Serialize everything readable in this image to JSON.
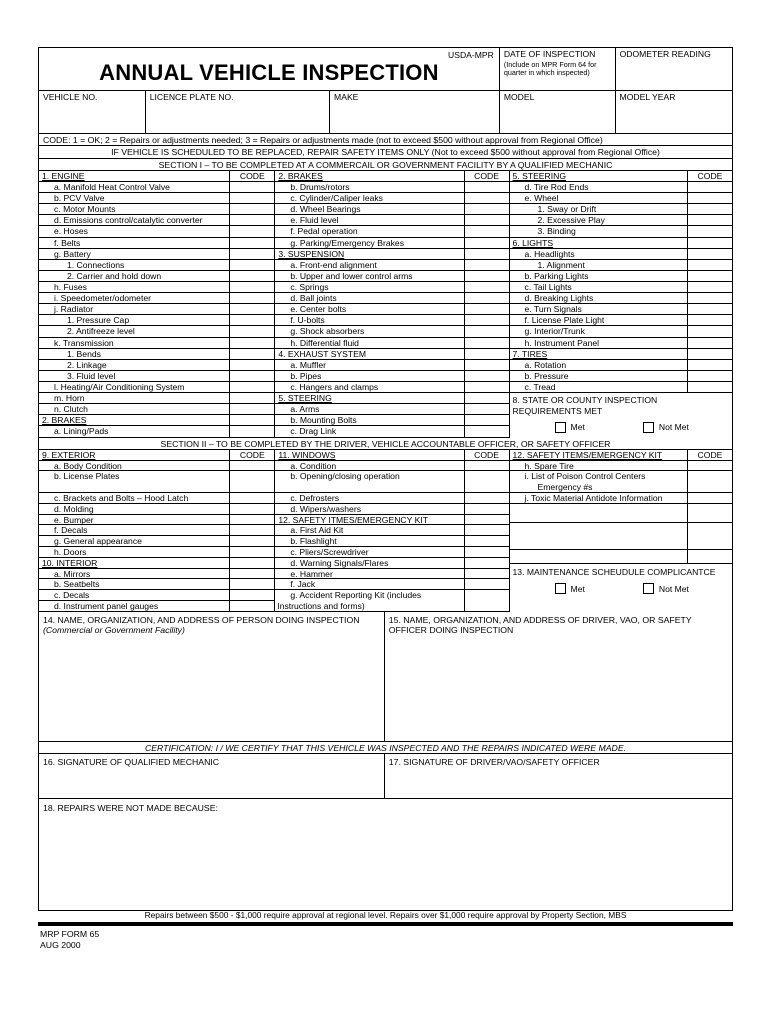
{
  "code_label": "CODE",
  "header": {
    "title": "ANNUAL VEHICLE INSPECTION",
    "form_code": "USDA-MPR",
    "date_label": "DATE OF INSPECTION",
    "date_note": "(Include on MPR Form 64 for quarter in which inspected)",
    "odometer_label": "ODOMETER READING",
    "fields": [
      "VEHICLE NO.",
      "LICENCE PLATE NO.",
      "MAKE",
      "MODEL",
      "MODEL YEAR"
    ]
  },
  "code_line": "CODE: 1 = OK; 2 = Repairs or adjustments needed; 3 = Repairs or adjustments made (not to exceed $500 without approval from Regional Office)",
  "replace_line": "IF VEHICLE IS SCHEDULED TO BE REPLACED, REPAIR SAFETY ITEMS ONLY (Not to exceed $500 without approval from Regional Office)",
  "section1": {
    "title": "SECTION I – TO BE COMPLETED AT A COMMERCAIL OR GOVERNMENT FACILITY BY A QUALIFIED MECHANIC",
    "col1": [
      {
        "t": "1.  ENGINE",
        "i": 0,
        "u": true,
        "hdr": true
      },
      {
        "t": "a.  Manifold Heat Control Valve",
        "i": 1
      },
      {
        "t": "b.  PCV Valve",
        "i": 1
      },
      {
        "t": "c.  Motor Mounts",
        "i": 1
      },
      {
        "t": "d.  Emissions control/catalytic converter",
        "i": 1
      },
      {
        "t": "e.  Hoses",
        "i": 1
      },
      {
        "t": "f.  Belts",
        "i": 1
      },
      {
        "t": "g.  Battery",
        "i": 1
      },
      {
        "t": "1.  Connections",
        "i": 2
      },
      {
        "t": "2.  Carrier and hold down",
        "i": 2
      },
      {
        "t": "h.  Fuses",
        "i": 1
      },
      {
        "t": "i.  Speedometer/odometer",
        "i": 1
      },
      {
        "t": "j.  Radiator",
        "i": 1
      },
      {
        "t": "1.  Pressure Cap",
        "i": 2
      },
      {
        "t": "2.  Antifreeze level",
        "i": 2
      },
      {
        "t": "k.  Transmission",
        "i": 1
      },
      {
        "t": "1.  Bends",
        "i": 2
      },
      {
        "t": "2.  Linkage",
        "i": 2
      },
      {
        "t": "3.  Fluid level",
        "i": 2
      },
      {
        "t": "l.  Heating/Air Conditioning System",
        "i": 1
      },
      {
        "t": "m. Horn",
        "i": 1
      },
      {
        "t": "n.  Clutch",
        "i": 1
      },
      {
        "t": "2.  BRAKES",
        "i": 0,
        "u": true
      },
      {
        "t": "a.  Lining/Pads",
        "i": 1
      }
    ],
    "col2": [
      {
        "t": "2.  BRAKES",
        "i": 0,
        "u": true,
        "hdr": true
      },
      {
        "t": "b.  Drums/rotors",
        "i": 1
      },
      {
        "t": "c.  Cylinder/Caliper leaks",
        "i": 1
      },
      {
        "t": "d.  Wheel Bearings",
        "i": 1
      },
      {
        "t": "e.  Fluid level",
        "i": 1
      },
      {
        "t": "f.  Pedal operation",
        "i": 1
      },
      {
        "t": "g.  Parking/Emergency Brakes",
        "i": 1
      },
      {
        "t": "3.  SUSPENSION",
        "i": 0,
        "u": true
      },
      {
        "t": "a.  Front-end alignment",
        "i": 1
      },
      {
        "t": "b.  Upper and lower control arms",
        "i": 1
      },
      {
        "t": "c.  Springs",
        "i": 1
      },
      {
        "t": "d.  Ball joints",
        "i": 1
      },
      {
        "t": "e.  Center bolts",
        "i": 1
      },
      {
        "t": "f.  U-bolts",
        "i": 1
      },
      {
        "t": "g.  Shock absorbers",
        "i": 1
      },
      {
        "t": "h.  Differential fluid",
        "i": 1
      },
      {
        "t": "4.  EXHAUST SYSTEM",
        "i": 0
      },
      {
        "t": "a.  Muffler",
        "i": 1
      },
      {
        "t": "b.  Pipes",
        "i": 1
      },
      {
        "t": "c.  Hangers and clamps",
        "i": 1
      },
      {
        "t": "5.  STEERING",
        "i": 0,
        "u": true
      },
      {
        "t": "a.  Arms",
        "i": 1
      },
      {
        "t": "b.  Mounting Bolts",
        "i": 1
      },
      {
        "t": "c.  Drag Link",
        "i": 1
      }
    ],
    "col3": [
      {
        "t": "5.  STEERING",
        "i": 0,
        "u": true,
        "hdr": true
      },
      {
        "t": "d.  Tire Rod Ends",
        "i": 1
      },
      {
        "t": "e.  Wheel",
        "i": 1
      },
      {
        "t": "1.  Sway or Drift",
        "i": 2
      },
      {
        "t": "2.  Excessive Play",
        "i": 2
      },
      {
        "t": "3.  Binding",
        "i": 2
      },
      {
        "t": "6.  LIGHTS",
        "i": 0,
        "u": true
      },
      {
        "t": "a.  Headlights",
        "i": 1
      },
      {
        "t": "1.  Alignment",
        "i": 2
      },
      {
        "t": "b.  Parking Lights",
        "i": 1
      },
      {
        "t": "c.  Tail Lights",
        "i": 1
      },
      {
        "t": "d.  Breaking Lights",
        "i": 1
      },
      {
        "t": "e.  Turn Signals",
        "i": 1
      },
      {
        "t": "f.  License Plate Light",
        "i": 1
      },
      {
        "t": "g.  Interior/Trunk",
        "i": 1
      },
      {
        "t": "h.  Instrument Panel",
        "i": 1
      },
      {
        "t": "7.  TIRES",
        "i": 0,
        "u": true
      },
      {
        "t": "a.  Rotation",
        "i": 1
      },
      {
        "t": "b.  Pressure",
        "i": 1
      },
      {
        "t": "c.  Tread",
        "i": 1
      }
    ],
    "block8": {
      "line1": "8.  STATE OR COUNTY INSPECTION",
      "line2": "REQUIREMENTS MET",
      "met": "Met",
      "not_met": "Not Met"
    }
  },
  "section2": {
    "title": "SECTION II – TO BE COMPLETED BY THE DRIVER, VEHICLE ACCOUNTABLE OFFICER, OR SAFETY OFFICER",
    "col1": [
      {
        "t": "9.  EXTERIOR",
        "i": 0,
        "u": true,
        "hdr": true
      },
      {
        "t": "a.  Body Condition",
        "i": 1
      },
      {
        "t": "b.  License Plates",
        "i": 1,
        "h": 2
      },
      {
        "t": "c.  Brackets and Bolts – Hood Latch",
        "i": 1
      },
      {
        "t": "d.  Molding",
        "i": 1
      },
      {
        "t": "e.  Bumper",
        "i": 1
      },
      {
        "t": "f.  Decals",
        "i": 1
      },
      {
        "t": "g.  General appearance",
        "i": 1
      },
      {
        "t": "h.  Doors",
        "i": 1
      },
      {
        "t": "10.  INTERIOR",
        "i": 0,
        "u": true
      },
      {
        "t": "a.  Mirrors",
        "i": 1
      },
      {
        "t": "b.  Seatbelts",
        "i": 1
      },
      {
        "t": "c.  Decals",
        "i": 1
      },
      {
        "t": "d.  Instrument panel gauges",
        "i": 1
      }
    ],
    "col2": [
      {
        "t": "11.  WINDOWS",
        "i": 0,
        "u": true,
        "hdr": true
      },
      {
        "t": "a.  Condition",
        "i": 1
      },
      {
        "t": "b.  Opening/closing operation",
        "i": 1,
        "h": 2
      },
      {
        "t": "c.  Defrosters",
        "i": 1
      },
      {
        "t": "d.  Wipers/washers",
        "i": 1
      },
      {
        "t": "12.  SAFETY ITMES/EMERGENCY KIT",
        "i": 0,
        "u": true
      },
      {
        "t": "a.  First Aid Kit",
        "i": 1
      },
      {
        "t": "b.  Flashlight",
        "i": 1
      },
      {
        "t": "c.  Pliers/Screwdriver",
        "i": 1
      },
      {
        "t": "d.  Warning Signals/Flares",
        "i": 1
      },
      {
        "t": "e.  Hammer",
        "i": 1
      },
      {
        "t": "f.  Jack",
        "i": 1
      },
      {
        "t": "g.  Accident Reporting Kit (includes",
        "i": 1,
        "h": 2,
        "t2": "Instructions and forms)",
        "i2": 0
      }
    ],
    "col3": [
      {
        "t": "12.  SAFETY ITEMS/EMERGENCY KIT",
        "i": 0,
        "u": true,
        "hdr": true
      },
      {
        "t": "h.  Spare Tire",
        "i": 1
      },
      {
        "t": "i.  List of Poison Control Centers",
        "i": 1,
        "h": 2,
        "t2": "Emergency #s",
        "i2": 2
      },
      {
        "t": "j.  Toxic Material Antidote Information",
        "i": 1
      },
      {
        "t": "",
        "i": 1,
        "h": 1.76
      },
      {
        "t": "",
        "i": 1,
        "h": 2.5
      },
      {
        "t": "",
        "i": 1,
        "h": 1.3
      }
    ],
    "block13": {
      "label": "13.  MAINTENANCE SCHEUDULE COMPLICANTCE",
      "met": "Met",
      "not_met": "Not Met"
    }
  },
  "row14": {
    "label": "14.  NAME, ORGANIZATION, AND ADDRESS OF PERSON DOING INSPECTION ",
    "italic": "(Commercial or Government Facility)"
  },
  "row15": "15.  NAME, ORGANIZATION, AND ADDRESS OF DRIVER, VAO, OR SAFETY OFFICER DOING INSPECTION",
  "certification": "CERTIFICATION: I / WE CERTIFY THAT THIS VEHICLE WAS INSPECTED AND THE REPAIRS INDICATED WERE MADE.",
  "sig16": "16.  SIGNATURE OF QUALIFIED MECHANIC",
  "sig17": "17.  SIGNATURE OF DRIVER/VAO/SAFETY OFFICER",
  "row18": "18.  REPAIRS WERE NOT MADE BECAUSE:",
  "footnote": "Repairs between $500 - $1,000 require approval at regional level.  Repairs over $1,000 require approval by Property Section, MBS",
  "form_number": "MRP FORM 65",
  "form_date": "AUG 2000"
}
